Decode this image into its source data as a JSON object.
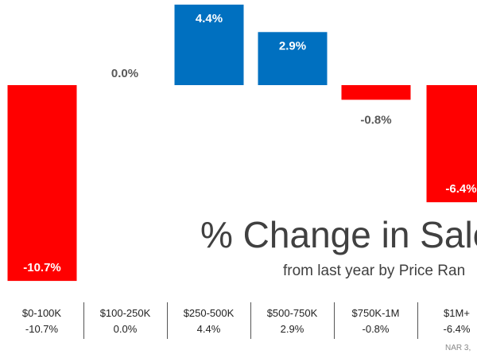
{
  "chart_data": {
    "type": "bar",
    "title": "% Change in Sale",
    "subtitle": "from last year by Price Ran",
    "categories": [
      "$0-100K",
      "$100-250K",
      "$250-500K",
      "$500-750K",
      "$750K-1M",
      "$1M+"
    ],
    "values": [
      -10.7,
      0.0,
      4.4,
      2.9,
      -0.8,
      -6.4
    ],
    "value_labels": [
      "-10.7%",
      "0.0%",
      "4.4%",
      "2.9%",
      "-0.8%",
      "-6.4%"
    ],
    "table_values": [
      "-10.7%",
      "0.0%",
      "4.4%",
      "2.9%",
      "-0.8%",
      "-6.4%"
    ],
    "colors": {
      "positive": "#0070C0",
      "negative": "#FF0000",
      "label_on_bar": "#FFFFFF",
      "label_off_bar": "#595959"
    },
    "source": "NAR 3,"
  }
}
